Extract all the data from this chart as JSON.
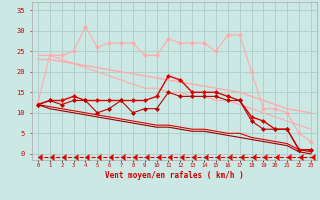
{
  "xlabel": "Vent moyen/en rafales ( km/h )",
  "background_color": "#cce8e4",
  "grid_color": "#b0d0cc",
  "x": [
    0,
    1,
    2,
    3,
    4,
    5,
    6,
    7,
    8,
    9,
    10,
    11,
    12,
    13,
    14,
    15,
    16,
    17,
    18,
    19,
    20,
    21,
    22,
    23
  ],
  "ylim": [
    -1.5,
    37
  ],
  "yticks": [
    0,
    5,
    10,
    15,
    20,
    25,
    30,
    35
  ],
  "lines": [
    {
      "y": [
        23,
        23,
        22.5,
        22,
        21.5,
        21,
        20.5,
        20,
        19.5,
        19,
        18.5,
        18,
        17.5,
        17,
        16.5,
        16,
        15.5,
        15,
        14,
        13,
        12,
        11,
        10.5,
        10
      ],
      "color": "#ffaaaa",
      "lw": 1.0,
      "marker": null,
      "ls": "-"
    },
    {
      "y": [
        12.5,
        24,
        24,
        25,
        31,
        26,
        27,
        27,
        27,
        24,
        24,
        28,
        27,
        27,
        27,
        25,
        29,
        29,
        20,
        11,
        11,
        10,
        5,
        3
      ],
      "color": "#ffaaaa",
      "lw": 0.8,
      "marker": "D",
      "ls": "-",
      "ms": 2.0
    },
    {
      "y": [
        24,
        24,
        23,
        22,
        21,
        20,
        19,
        18,
        17,
        16,
        16,
        15,
        15,
        14,
        14,
        13,
        13,
        12,
        11,
        10,
        9,
        8,
        7,
        6
      ],
      "color": "#ffaaaa",
      "lw": 0.8,
      "marker": null,
      "ls": "-"
    },
    {
      "y": [
        12,
        13,
        13,
        14,
        13,
        13,
        13,
        13,
        13,
        13,
        14,
        19,
        18,
        15,
        15,
        15,
        14,
        13,
        9,
        8,
        6,
        6,
        1,
        1
      ],
      "color": "#dd0000",
      "lw": 1.0,
      "marker": "D",
      "ls": "-",
      "ms": 2.0
    },
    {
      "y": [
        12,
        13,
        12,
        13,
        13,
        10,
        11,
        13,
        10,
        11,
        11,
        15,
        14,
        14,
        14,
        14,
        13,
        13,
        8,
        6,
        6,
        6,
        1,
        1
      ],
      "color": "#bb0000",
      "lw": 0.8,
      "marker": "D",
      "ls": "-",
      "ms": 2.0
    },
    {
      "y": [
        12,
        11.5,
        11,
        10.5,
        10,
        9.5,
        9,
        8.5,
        8,
        7.5,
        7,
        7,
        6.5,
        6,
        6,
        5.5,
        5,
        5,
        4,
        3.5,
        3,
        2.5,
        1,
        0.5
      ],
      "color": "#dd0000",
      "lw": 0.8,
      "marker": null,
      "ls": "-"
    },
    {
      "y": [
        12,
        11,
        10.5,
        10,
        9.5,
        9,
        8.5,
        8,
        7.5,
        7,
        6.5,
        6.5,
        6,
        5.5,
        5.5,
        5,
        4.5,
        4,
        3.5,
        3,
        2.5,
        2,
        0.5,
        0
      ],
      "color": "#990000",
      "lw": 0.8,
      "marker": null,
      "ls": "-"
    },
    {
      "y": [
        -0.8,
        -0.8,
        -0.8,
        -0.8,
        -0.8,
        -0.8,
        -0.8,
        -0.8,
        -0.8,
        -0.8,
        -0.8,
        -0.8,
        -0.8,
        -0.8,
        -0.8,
        -0.8,
        -0.8,
        -0.8,
        -0.8,
        -0.8,
        -0.8,
        -0.8,
        -0.8,
        -0.8
      ],
      "color": "#dd0000",
      "lw": 0.8,
      "marker": 4,
      "ls": "--",
      "ms": 4.0
    }
  ]
}
